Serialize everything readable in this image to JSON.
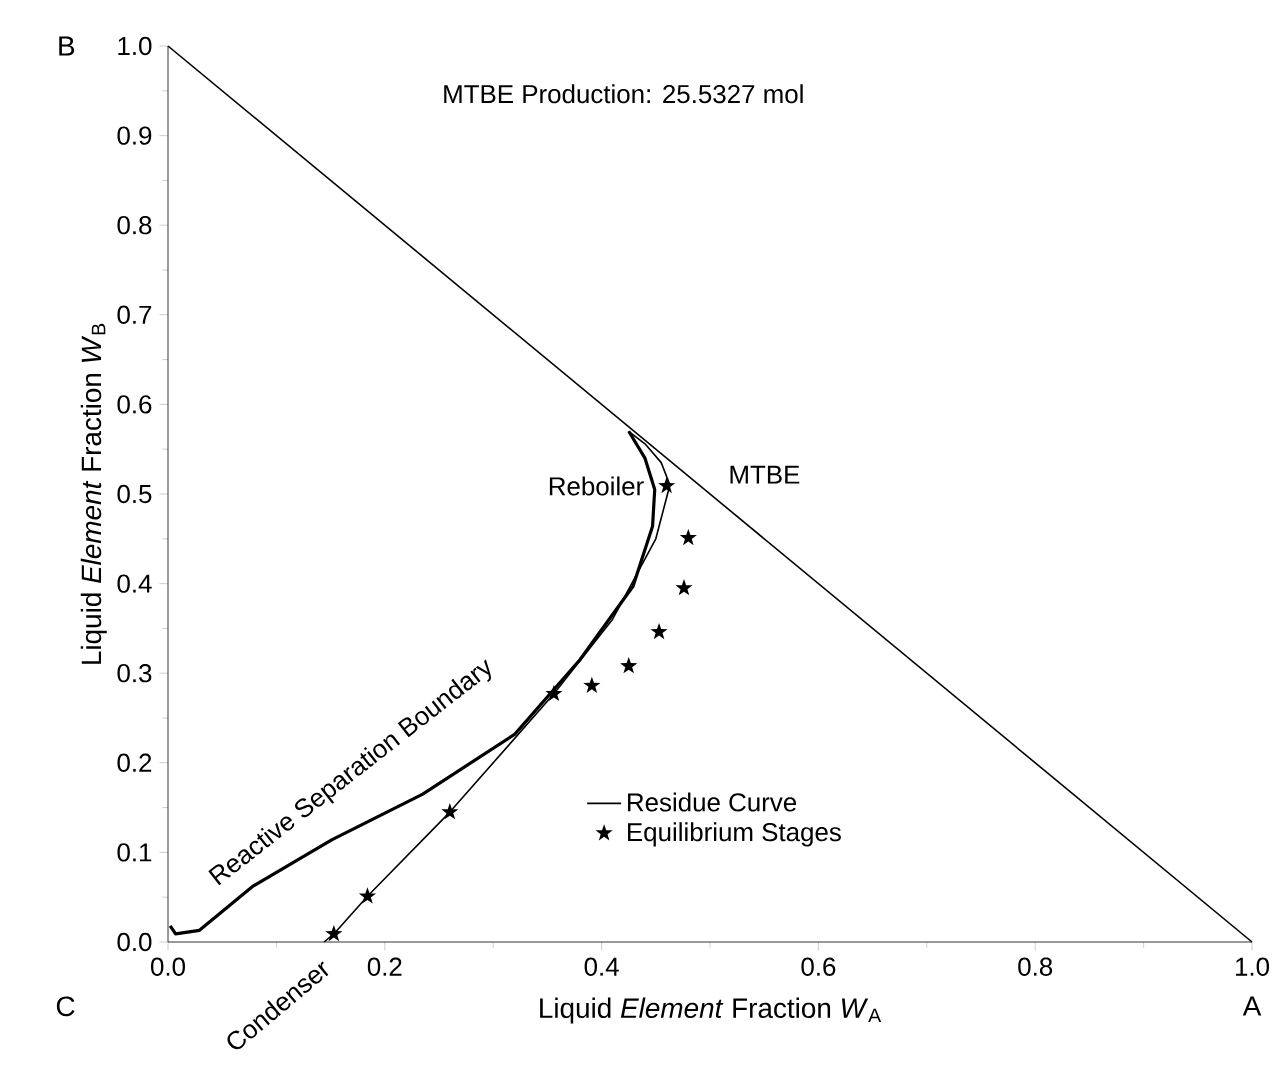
{
  "chart_data": {
    "type": "line",
    "xlabel": "Liquid *Element* Fraction *W*$_{A}$",
    "ylabel": "Liquid *Element* Fraction *W*$_{B}$",
    "xlim": [
      0,
      1
    ],
    "ylim": [
      0,
      1
    ],
    "xticks": [
      {
        "value": 0,
        "label": "0.0"
      },
      {
        "value": 0.2,
        "label": "0.2"
      },
      {
        "value": 0.4,
        "label": "0.4"
      },
      {
        "value": 0.6,
        "label": "0.6"
      },
      {
        "value": 0.8,
        "label": "0.8"
      },
      {
        "value": 1,
        "label": "1.0"
      }
    ],
    "yticks": [
      {
        "value": 0,
        "label": "0.0"
      },
      {
        "value": 0.1,
        "label": "0.1"
      },
      {
        "value": 0.2,
        "label": "0.2"
      },
      {
        "value": 0.3,
        "label": "0.3"
      },
      {
        "value": 0.4,
        "label": "0.4"
      },
      {
        "value": 0.5,
        "label": "0.5"
      },
      {
        "value": 0.6,
        "label": "0.6"
      },
      {
        "value": 0.7,
        "label": "0.7"
      },
      {
        "value": 0.8,
        "label": "0.8"
      },
      {
        "value": 0.9,
        "label": "0.9"
      },
      {
        "value": 1,
        "label": "1.0"
      }
    ],
    "series": [
      {
        "color": "#000000",
        "x": [
          0,
          1
        ],
        "values": [
          1,
          0
        ]
      },
      {
        "color": "#000000",
        "x": [
          0.002,
          0.007,
          0.029,
          0.078,
          0.151,
          0.235,
          0.32,
          0.38,
          0.429,
          0.447,
          0.449,
          0.44,
          0.425
        ],
        "values": [
          0.018,
          0.009,
          0.013,
          0.062,
          0.114,
          0.165,
          0.232,
          0.315,
          0.397,
          0.464,
          0.505,
          0.54,
          0.57
        ]
      },
      {
        "name": "Residue Curve",
        "color": "#000000",
        "x": [
          0.144,
          0.153,
          0.184,
          0.26,
          0.356,
          0.41,
          0.45,
          0.463,
          0.455,
          0.44,
          0.425
        ],
        "values": [
          0,
          0.009,
          0.051,
          0.145,
          0.277,
          0.36,
          0.45,
          0.51,
          0.535,
          0.556,
          0.57
        ]
      },
      {
        "name": "Equilibrium Stages",
        "type": "scatter",
        "marker": "star",
        "color": "#000000",
        "x": [
          0.153,
          0.184,
          0.26,
          0.356,
          0.391,
          0.425,
          0.453,
          0.476,
          0.48,
          0.46
        ],
        "values": [
          0.009,
          0.051,
          0.145,
          0.277,
          0.286,
          0.308,
          0.346,
          0.395,
          0.451,
          0.509
        ]
      }
    ],
    "annotations": [
      "MTBE Production: 25.5327 mol",
      {
        "text": "Reboiler",
        "x": 0.46,
        "y": 0.509
      },
      {
        "text": "MTBE",
        "x": 0.5,
        "y": 0.5
      },
      {
        "text": "Reactive Separation Boundary",
        "x": 0.2,
        "y": 0.14
      },
      {
        "text": "Condenser",
        "x": 0.144,
        "y": 0
      },
      "A",
      "B",
      "C"
    ],
    "legend": "bottom",
    "grid": false,
    "marker": "none",
    "line_style": "solid"
  }
}
